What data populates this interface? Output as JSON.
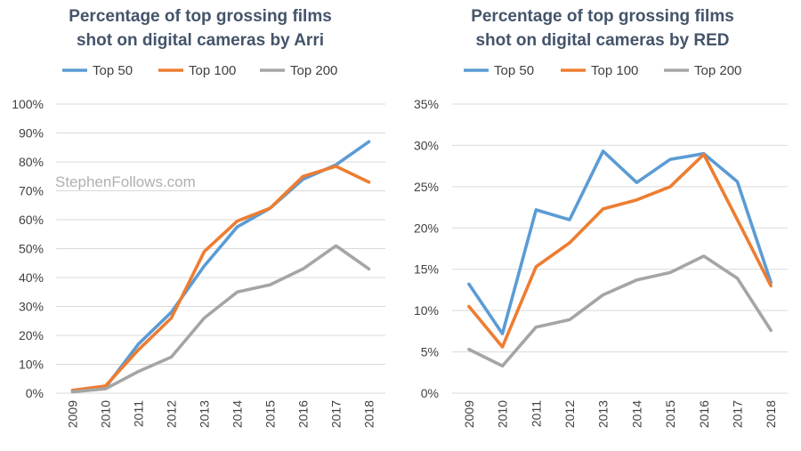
{
  "watermark": "StephenFollows.com",
  "colors": {
    "top50": "#5b9bd5",
    "top100": "#ed7d31",
    "top200": "#a5a5a5",
    "title": "#44546a",
    "grid": "#d9d9d9"
  },
  "chart_data": [
    {
      "type": "line",
      "title": "Percentage of top grossing films shot on digital cameras by Arri",
      "title_lines": [
        "Percentage of top grossing films",
        "shot on digital cameras by Arri"
      ],
      "x": [
        "2009",
        "2010",
        "2011",
        "2012",
        "2013",
        "2014",
        "2015",
        "2016",
        "2017",
        "2018"
      ],
      "ylim": [
        0,
        100
      ],
      "yticks": [
        0,
        10,
        20,
        30,
        40,
        50,
        60,
        70,
        80,
        90,
        100
      ],
      "ytick_labels": [
        "0%",
        "10%",
        "20%",
        "30%",
        "40%",
        "50%",
        "60%",
        "70%",
        "80%",
        "90%",
        "100%"
      ],
      "legend_position": "top",
      "grid": true,
      "series": [
        {
          "name": "Top 50",
          "color_key": "top50",
          "values": [
            0.5,
            2,
            17,
            28,
            44,
            57.5,
            64,
            74,
            79,
            87
          ]
        },
        {
          "name": "Top 100",
          "color_key": "top100",
          "values": [
            1,
            2.5,
            15,
            26,
            49,
            59.5,
            64,
            75,
            78.5,
            73
          ]
        },
        {
          "name": "Top 200",
          "color_key": "top200",
          "values": [
            0.5,
            1.5,
            7.5,
            12.5,
            26,
            35,
            37.5,
            43,
            51,
            43
          ]
        }
      ]
    },
    {
      "type": "line",
      "title": "Percentage of top grossing films shot on digital cameras by RED",
      "title_lines": [
        "Percentage of top grossing films",
        "shot on digital cameras by RED"
      ],
      "x": [
        "2009",
        "2010",
        "2011",
        "2012",
        "2013",
        "2014",
        "2015",
        "2016",
        "2017",
        "2018"
      ],
      "ylim": [
        0,
        35
      ],
      "yticks": [
        0,
        5,
        10,
        15,
        20,
        25,
        30,
        35
      ],
      "ytick_labels": [
        "0%",
        "5%",
        "10%",
        "15%",
        "20%",
        "25%",
        "30%",
        "35%"
      ],
      "legend_position": "top",
      "grid": true,
      "series": [
        {
          "name": "Top 50",
          "color_key": "top50",
          "values": [
            13.2,
            7.2,
            22.2,
            21,
            29.3,
            25.5,
            28.3,
            29,
            25.6,
            13.4
          ]
        },
        {
          "name": "Top 100",
          "color_key": "top100",
          "values": [
            10.5,
            5.6,
            15.3,
            18.2,
            22.3,
            23.4,
            25,
            28.9,
            21,
            13
          ]
        },
        {
          "name": "Top 200",
          "color_key": "top200",
          "values": [
            5.3,
            3.3,
            8,
            8.9,
            11.9,
            13.7,
            14.6,
            16.6,
            13.9,
            7.6
          ]
        }
      ]
    }
  ]
}
